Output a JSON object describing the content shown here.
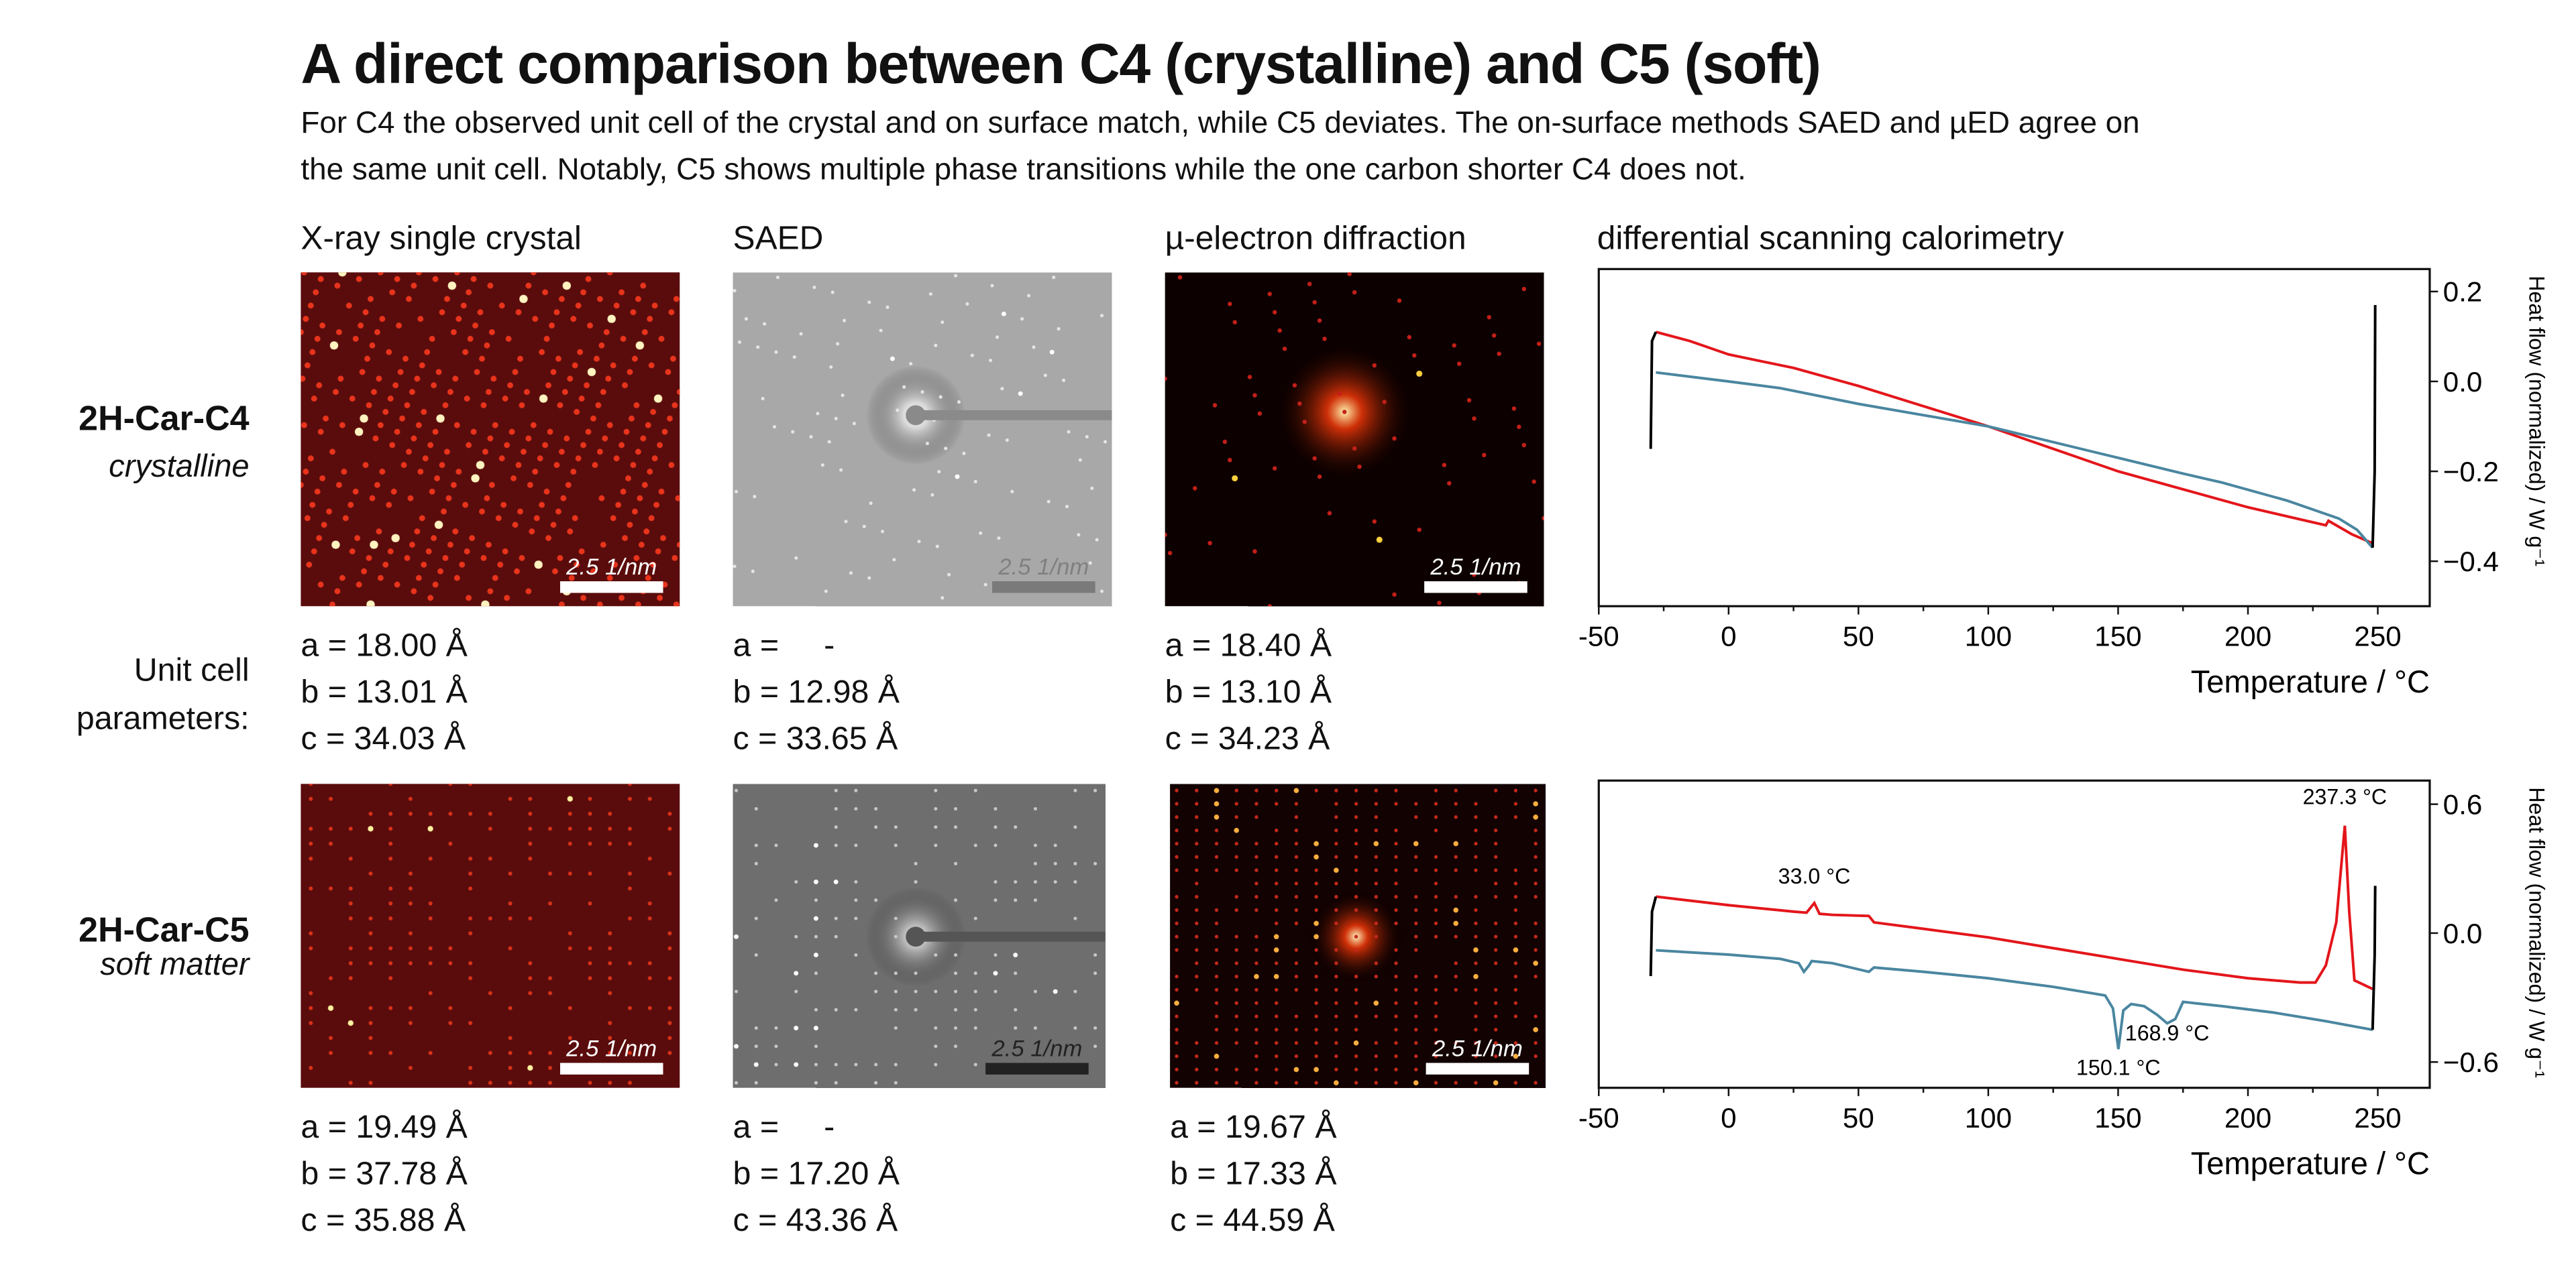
{
  "header": {
    "title": "A direct comparison between C4 (crystalline) and C5 (soft)",
    "subtitle_line1": "For C4 the observed unit cell of the crystal and on surface match, while C5 deviates. The on-surface methods SAED and µED agree on",
    "subtitle_line2": "the same unit cell. Notably, C5 shows multiple phase transitions while the one carbon shorter C4 does not."
  },
  "columns": [
    "X-ray single crystal",
    "SAED",
    "µ-electron diffraction",
    "differential scanning calorimetry"
  ],
  "row_labels": {
    "c4_name": "2H-Car-C4",
    "c4_state": "crystalline",
    "unit_cell_line1": "Unit cell",
    "unit_cell_line2": "parameters:",
    "c5_name": "2H-Car-C5",
    "c5_state": "soft matter"
  },
  "scale_bar": "2.5 1/nm",
  "params": {
    "c4": [
      [
        "a = 18.00 Å",
        "b = 13.01 Å",
        "c = 34.03 Å"
      ],
      [
        "a =     -",
        "b = 12.98 Å",
        "c = 33.65 Å"
      ],
      [
        "a = 18.40 Å",
        "b = 13.10 Å",
        "c = 34.23 Å"
      ]
    ],
    "c5": [
      [
        "a = 19.49 Å",
        "b = 37.78 Å",
        "c = 35.88 Å"
      ],
      [
        "a =     -",
        "b = 17.20 Å",
        "c = 43.36 Å"
      ],
      [
        "a = 19.67 Å",
        "b = 17.33 Å",
        "c = 44.59 Å"
      ]
    ]
  },
  "colors": {
    "heating": "#e3161b",
    "cooling": "#4a86a0",
    "ramp": "#000000"
  },
  "chart_data": [
    {
      "type": "line",
      "xlabel": "Temperature / °C",
      "ylabel": "Heat flow (normalized) / W g⁻¹",
      "xlim": [
        -50,
        270
      ],
      "ylim": [
        -0.5,
        0.25
      ],
      "xticks": [
        "-50",
        "0",
        "50",
        "100",
        "150",
        "200",
        "250"
      ],
      "yticks": [
        "0.2",
        "0.0",
        "−0.2",
        "−0.4"
      ],
      "ytick_values": [
        0.2,
        0.0,
        -0.2,
        -0.4
      ],
      "series": [
        {
          "color": "#e3161b",
          "x": [
            -28,
            -15,
            0,
            25,
            50,
            75,
            100,
            125,
            150,
            175,
            200,
            215,
            230,
            231,
            240,
            248
          ],
          "y": [
            0.11,
            0.09,
            0.06,
            0.03,
            -0.01,
            -0.055,
            -0.1,
            -0.15,
            -0.2,
            -0.24,
            -0.28,
            -0.3,
            -0.32,
            -0.31,
            -0.34,
            -0.36
          ]
        },
        {
          "color": "#4a86a0",
          "x": [
            -28,
            0,
            20,
            50,
            75,
            100,
            125,
            150,
            175,
            190,
            215,
            235,
            242,
            248
          ],
          "y": [
            0.02,
            0.0,
            -0.015,
            -0.05,
            -0.075,
            -0.1,
            -0.135,
            -0.17,
            -0.205,
            -0.225,
            -0.265,
            -0.305,
            -0.33,
            -0.37
          ]
        },
        {
          "color": "#000000",
          "x": [
            -30,
            -29.5,
            -28
          ],
          "y": [
            -0.15,
            0.09,
            0.11
          ]
        },
        {
          "color": "#000000",
          "x": [
            248,
            248.8,
            249
          ],
          "y": [
            -0.37,
            -0.2,
            0.17
          ]
        }
      ],
      "annotations": []
    },
    {
      "type": "line",
      "xlabel": "Temperature / °C",
      "ylabel": "Heat flow (normalized) / W g⁻¹",
      "xlim": [
        -50,
        270
      ],
      "ylim": [
        -0.72,
        0.71
      ],
      "xticks": [
        "-50",
        "0",
        "50",
        "100",
        "150",
        "200",
        "250"
      ],
      "yticks": [
        "0.6",
        "0.0",
        "−0.6"
      ],
      "ytick_values": [
        0.6,
        0.0,
        -0.6
      ],
      "series": [
        {
          "color": "#e3161b",
          "x": [
            -28,
            0,
            25,
            30,
            33,
            35,
            40,
            54,
            56,
            75,
            100,
            125,
            150,
            175,
            200,
            220,
            226,
            230,
            234,
            237.3,
            239,
            241,
            248
          ],
          "y": [
            0.17,
            0.13,
            0.1,
            0.095,
            0.14,
            0.09,
            0.085,
            0.08,
            0.05,
            0.02,
            -0.02,
            -0.07,
            -0.12,
            -0.17,
            -0.21,
            -0.23,
            -0.23,
            -0.15,
            0.05,
            0.5,
            0.1,
            -0.22,
            -0.26
          ]
        },
        {
          "color": "#4a86a0",
          "x": [
            -28,
            0,
            20,
            27,
            29,
            31,
            32,
            40,
            54,
            56,
            75,
            100,
            125,
            140,
            145,
            148,
            150.1,
            152,
            155,
            160,
            165,
            168.9,
            172,
            175,
            190,
            210,
            230,
            248
          ],
          "y": [
            -0.08,
            -0.1,
            -0.12,
            -0.14,
            -0.18,
            -0.15,
            -0.13,
            -0.14,
            -0.18,
            -0.16,
            -0.18,
            -0.21,
            -0.25,
            -0.28,
            -0.29,
            -0.35,
            -0.54,
            -0.36,
            -0.33,
            -0.34,
            -0.38,
            -0.42,
            -0.4,
            -0.32,
            -0.34,
            -0.37,
            -0.41,
            -0.45
          ]
        },
        {
          "color": "#000000",
          "x": [
            -30,
            -29.5,
            -28
          ],
          "y": [
            -0.2,
            0.1,
            0.17
          ]
        },
        {
          "color": "#000000",
          "x": [
            248,
            248.8,
            249
          ],
          "y": [
            -0.45,
            -0.1,
            0.22
          ]
        }
      ],
      "annotations": [
        {
          "text": "33.0 °C",
          "x": 33,
          "y": 0.23
        },
        {
          "text": "237.3 °C",
          "x": 237.3,
          "y": 0.6
        },
        {
          "text": "150.1 °C",
          "x": 150.1,
          "y": -0.66
        },
        {
          "text": "168.9 °C",
          "x": 168.9,
          "y": -0.5
        }
      ]
    }
  ]
}
